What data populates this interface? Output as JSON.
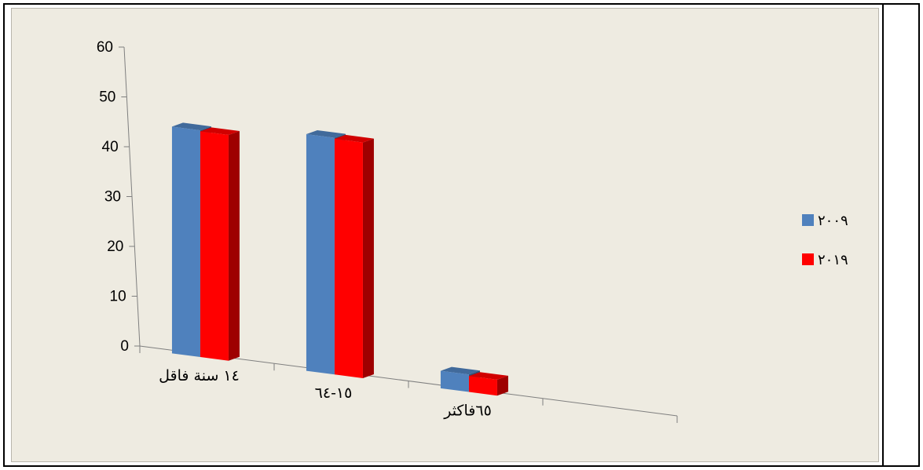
{
  "chart_data": {
    "type": "bar",
    "categories": [
      "١٤ سنة فاقل",
      "١٥-٦٤",
      "٦٥فاكثر"
    ],
    "series": [
      {
        "name": "٢٠٠٩",
        "values": [
          45.5,
          47.5,
          3.5
        ],
        "color": "#4f81bd"
      },
      {
        "name": "٢٠١٩",
        "values": [
          45.3,
          47.3,
          3.2
        ],
        "color": "#ff0000"
      }
    ],
    "ylim": [
      0,
      60
    ],
    "yticks": [
      0,
      10,
      20,
      30,
      40,
      50,
      60
    ],
    "title": "",
    "xlabel": "",
    "ylabel": "",
    "grid": false,
    "legend_position": "right",
    "style": "3d-column"
  }
}
